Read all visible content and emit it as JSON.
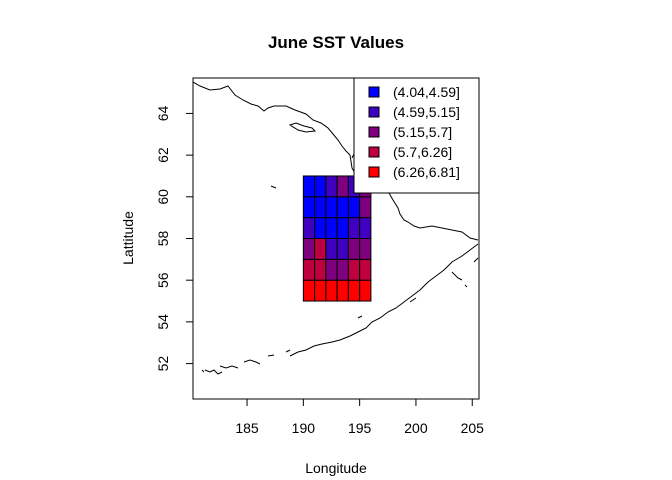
{
  "chart_data": {
    "type": "heatmap",
    "title": "June SST Values",
    "xlabel": "Longitude",
    "ylabel": "Lattitude",
    "xlim": [
      180.2,
      205.6
    ],
    "ylim": [
      50.3,
      65.7
    ],
    "x_ticks": [
      185,
      190,
      195,
      200,
      205
    ],
    "y_ticks": [
      52,
      54,
      56,
      58,
      60,
      62,
      64
    ],
    "grid": false,
    "legend_position": "top-right",
    "legend": [
      {
        "label": "(4.04,4.59]",
        "color": "#0000FF"
      },
      {
        "label": "(4.59,5.15]",
        "color": "#3F00BF"
      },
      {
        "label": "(5.15,5.7]",
        "color": "#7F007F"
      },
      {
        "label": "(5.7,6.26]",
        "color": "#BF003F"
      },
      {
        "label": "(6.26,6.81]",
        "color": "#FF0000"
      }
    ],
    "cells": {
      "lon_start": 190,
      "lat_start": 55,
      "cell_lon": 1,
      "cell_lat": 1,
      "classes": [
        [
          4,
          4,
          4,
          4,
          4,
          4
        ],
        [
          3,
          3,
          2,
          2,
          3,
          3
        ],
        [
          2,
          3,
          1,
          1,
          2,
          2
        ],
        [
          1,
          0,
          0,
          0,
          1,
          1
        ],
        [
          0,
          0,
          0,
          0,
          0,
          2
        ],
        [
          0,
          0,
          1,
          2,
          1,
          2
        ]
      ]
    }
  }
}
